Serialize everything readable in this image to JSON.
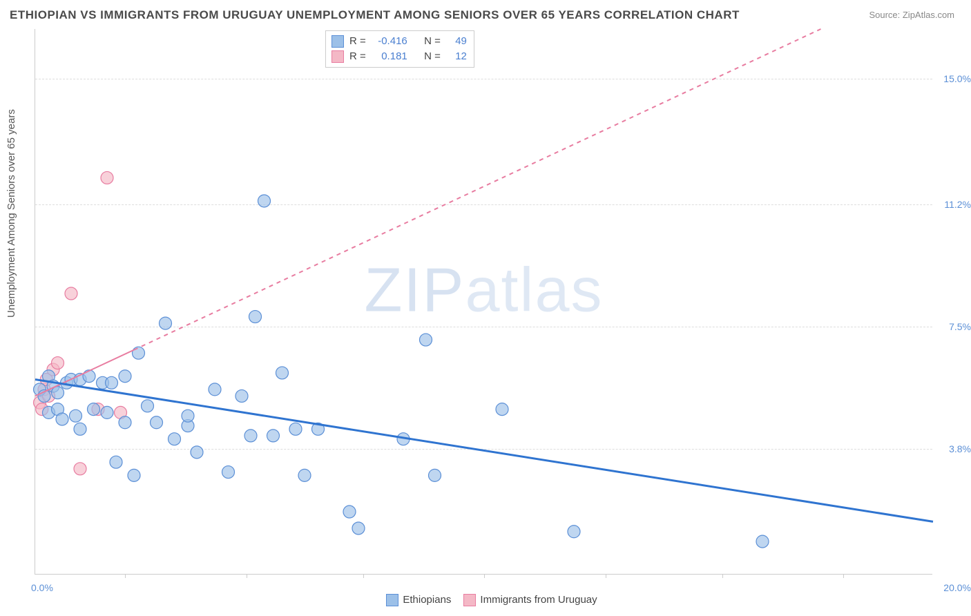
{
  "chart": {
    "type": "scatter",
    "title": "ETHIOPIAN VS IMMIGRANTS FROM URUGUAY UNEMPLOYMENT AMONG SENIORS OVER 65 YEARS CORRELATION CHART",
    "source_label": "Source: ZipAtlas.com",
    "y_axis_label": "Unemployment Among Seniors over 65 years",
    "watermark_text": "ZIPatlas",
    "x_range": [
      0.0,
      20.0
    ],
    "y_range": [
      0.0,
      16.5
    ],
    "x_left_label": "0.0%",
    "x_right_label": "20.0%",
    "y_ticks": [
      3.8,
      7.5,
      11.2,
      15.0
    ],
    "y_tick_labels": [
      "3.8%",
      "7.5%",
      "11.2%",
      "15.0%"
    ],
    "x_tick_positions": [
      2.0,
      4.7,
      7.3,
      10.0,
      12.7,
      15.3,
      18.0
    ],
    "grid_color": "#dddddd",
    "axis_color": "#cccccc",
    "background_color": "#ffffff",
    "series": {
      "ethiopians": {
        "label": "Ethiopians",
        "marker_color_fill": "#9cc0e8",
        "marker_color_stroke": "#5b8fd6",
        "marker_radius": 9,
        "marker_opacity": 0.65,
        "trend_color": "#2f74d0",
        "trend_width": 3,
        "trend_dash": "none",
        "R": "-0.416",
        "N": "49",
        "trend_line": {
          "x1": 0.0,
          "y1": 5.9,
          "x2": 20.0,
          "y2": 1.6
        },
        "points": [
          [
            0.1,
            5.6
          ],
          [
            0.2,
            5.4
          ],
          [
            0.3,
            6.0
          ],
          [
            0.3,
            4.9
          ],
          [
            0.4,
            5.7
          ],
          [
            0.5,
            5.0
          ],
          [
            0.5,
            5.5
          ],
          [
            0.6,
            4.7
          ],
          [
            0.7,
            5.8
          ],
          [
            0.8,
            5.9
          ],
          [
            0.9,
            4.8
          ],
          [
            1.0,
            5.9
          ],
          [
            1.0,
            4.4
          ],
          [
            1.2,
            6.0
          ],
          [
            1.3,
            5.0
          ],
          [
            1.5,
            5.8
          ],
          [
            1.6,
            4.9
          ],
          [
            1.7,
            5.8
          ],
          [
            1.8,
            3.4
          ],
          [
            2.0,
            4.6
          ],
          [
            2.0,
            6.0
          ],
          [
            2.2,
            3.0
          ],
          [
            2.3,
            6.7
          ],
          [
            2.5,
            5.1
          ],
          [
            2.7,
            4.6
          ],
          [
            2.9,
            7.6
          ],
          [
            3.1,
            4.1
          ],
          [
            3.4,
            4.5
          ],
          [
            3.4,
            4.8
          ],
          [
            3.6,
            3.7
          ],
          [
            4.0,
            5.6
          ],
          [
            4.3,
            3.1
          ],
          [
            4.6,
            5.4
          ],
          [
            4.8,
            4.2
          ],
          [
            4.9,
            7.8
          ],
          [
            5.1,
            11.3
          ],
          [
            5.3,
            4.2
          ],
          [
            5.5,
            6.1
          ],
          [
            5.8,
            4.4
          ],
          [
            6.0,
            3.0
          ],
          [
            6.3,
            4.4
          ],
          [
            7.0,
            1.9
          ],
          [
            7.2,
            1.4
          ],
          [
            8.2,
            4.1
          ],
          [
            8.7,
            7.1
          ],
          [
            8.9,
            3.0
          ],
          [
            10.4,
            5.0
          ],
          [
            12.0,
            1.3
          ],
          [
            16.2,
            1.0
          ]
        ]
      },
      "uruguay": {
        "label": "Immigrants from Uruguay",
        "marker_color_fill": "#f4b8c6",
        "marker_color_stroke": "#e87ca0",
        "marker_radius": 9,
        "marker_opacity": 0.65,
        "trend_color": "#e87ca0",
        "trend_width": 2,
        "trend_dash_solid_until_x": 2.2,
        "trend_dash": "6,6",
        "R": "0.181",
        "N": "12",
        "trend_line": {
          "x1": 0.0,
          "y1": 5.4,
          "x2": 17.5,
          "y2": 16.5
        },
        "points": [
          [
            0.1,
            5.2
          ],
          [
            0.15,
            5.0
          ],
          [
            0.2,
            5.6
          ],
          [
            0.25,
            5.9
          ],
          [
            0.3,
            5.4
          ],
          [
            0.4,
            6.2
          ],
          [
            0.5,
            6.4
          ],
          [
            0.8,
            8.5
          ],
          [
            1.0,
            3.2
          ],
          [
            1.4,
            5.0
          ],
          [
            1.6,
            12.0
          ],
          [
            1.9,
            4.9
          ]
        ]
      }
    },
    "stats_box": {
      "rows": [
        {
          "swatch_fill": "#9cc0e8",
          "swatch_stroke": "#5b8fd6",
          "R_label": "R =",
          "R": "-0.416",
          "N_label": "N =",
          "N": "49"
        },
        {
          "swatch_fill": "#f4b8c6",
          "swatch_stroke": "#e87ca0",
          "R_label": "R =",
          "R": "0.181",
          "N_label": "N =",
          "N": "12"
        }
      ]
    },
    "bottom_legend": [
      {
        "swatch_fill": "#9cc0e8",
        "swatch_stroke": "#5b8fd6",
        "label": "Ethiopians"
      },
      {
        "swatch_fill": "#f4b8c6",
        "swatch_stroke": "#e87ca0",
        "label": "Immigrants from Uruguay"
      }
    ]
  }
}
